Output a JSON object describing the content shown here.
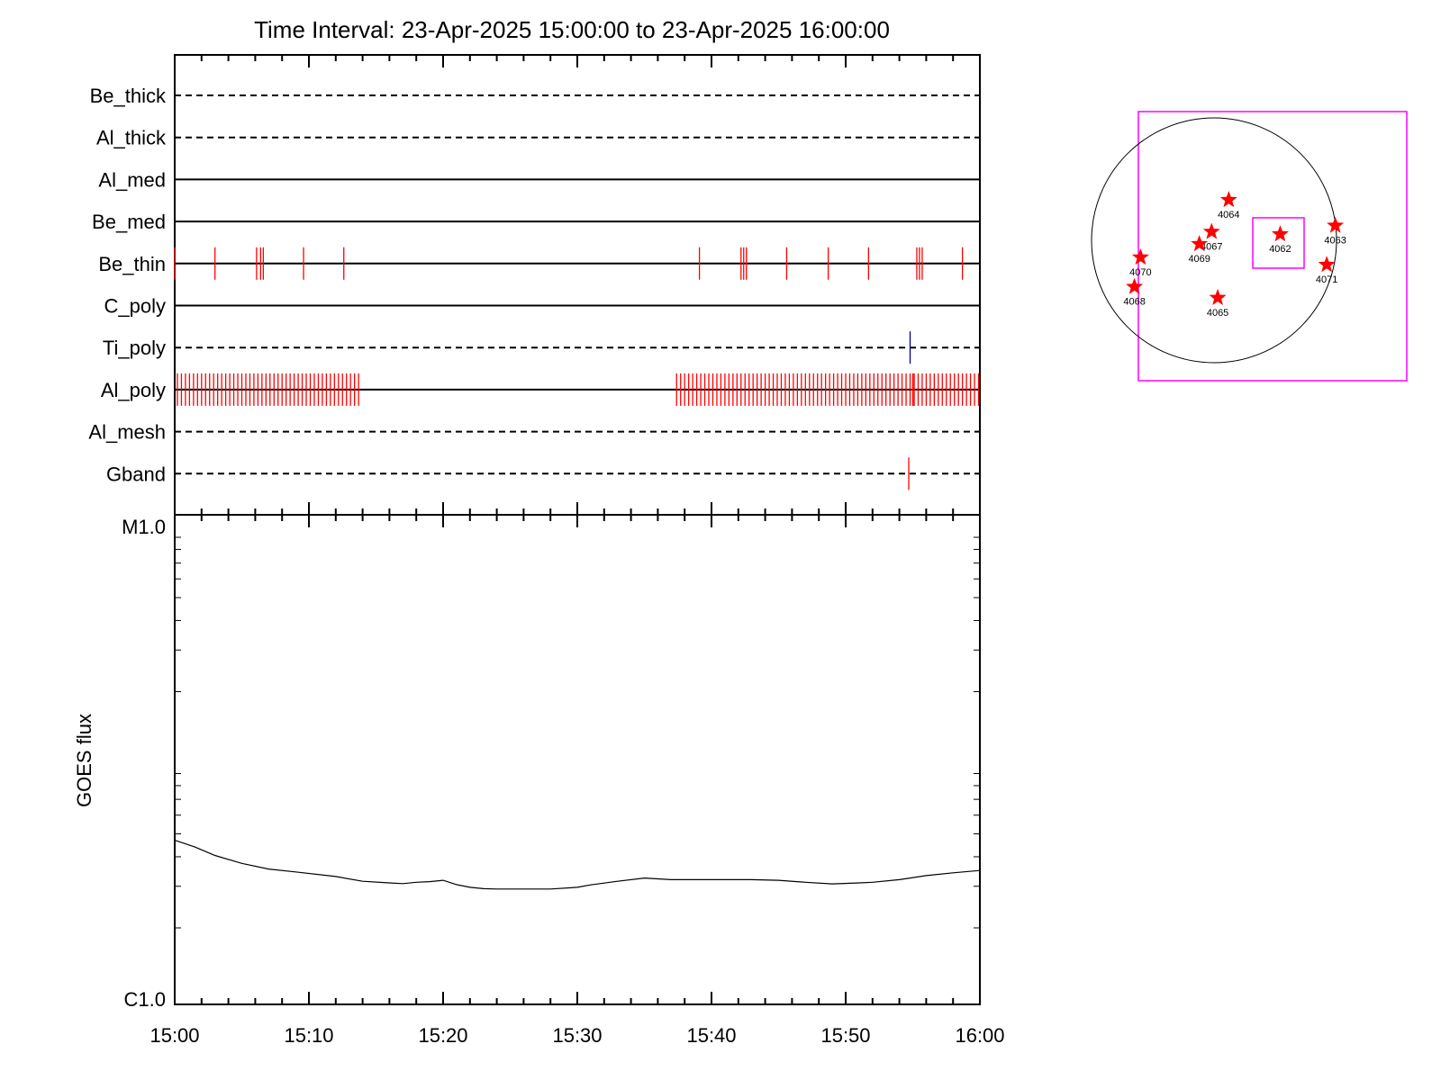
{
  "chart_data": [
    {
      "type": "event-timeline",
      "title": "Time Interval: 23-Apr-2025 15:00:00 to 23-Apr-2025 16:00:00",
      "x_range_minutes": [
        0,
        60
      ],
      "channels": [
        {
          "name": "Be_thick",
          "style": "dashed",
          "events": [],
          "color": "#ff0000"
        },
        {
          "name": "Al_thick",
          "style": "dashed",
          "events": [],
          "color": "#ff0000"
        },
        {
          "name": "Al_med",
          "style": "solid",
          "events": [],
          "color": "#ff0000"
        },
        {
          "name": "Be_med",
          "style": "solid",
          "events": [],
          "color": "#ff0000"
        },
        {
          "name": "Be_thin",
          "style": "solid",
          "color": "#ff0000",
          "events": [
            0.0,
            3.0,
            6.1,
            6.4,
            6.6,
            9.6,
            12.6,
            39.1,
            42.2,
            42.4,
            42.6,
            45.6,
            48.7,
            51.7,
            55.3,
            55.5,
            55.7,
            58.7
          ]
        },
        {
          "name": "C_poly",
          "style": "solid",
          "events": [],
          "color": "#ff0000"
        },
        {
          "name": "Ti_poly",
          "style": "dashed",
          "color": "#00008b",
          "events": [
            54.8
          ]
        },
        {
          "name": "Al_poly",
          "style": "solid",
          "color": "#ff0000",
          "event_ranges": [
            {
              "start": 0.2,
              "end": 13.8,
              "step": 0.3
            },
            {
              "start": 37.4,
              "end": 59.9,
              "step": 0.3
            }
          ],
          "dense_events": [
            55.0,
            55.1
          ]
        },
        {
          "name": "Al_mesh",
          "style": "dashed",
          "events": [],
          "color": "#ff0000"
        },
        {
          "name": "Gband",
          "style": "dashed",
          "color": "#ff0000",
          "events": [
            54.7
          ]
        }
      ]
    },
    {
      "type": "line",
      "ylabel": "GOES flux",
      "y_scale": "log",
      "yticks": [
        "M1.0",
        "C1.0"
      ],
      "ylim": [
        "C1.0",
        "M1.0"
      ],
      "xticks": [
        "15:00",
        "15:10",
        "15:20",
        "15:30",
        "15:40",
        "15:50",
        "16:00"
      ],
      "xlim_minutes": [
        0,
        60
      ],
      "series": [
        {
          "x": [
            0,
            1.5,
            3,
            5,
            7,
            9,
            12,
            14,
            16,
            17,
            18,
            19,
            20,
            21,
            22,
            23,
            24,
            26,
            28,
            30,
            31,
            33,
            35,
            37,
            39,
            41,
            43,
            45,
            47,
            49,
            51,
            52,
            54,
            56,
            58,
            60
          ],
          "y": [
            4.7,
            4.4,
            4.05,
            3.75,
            3.55,
            3.45,
            3.3,
            3.15,
            3.1,
            3.08,
            3.12,
            3.14,
            3.18,
            3.05,
            2.97,
            2.93,
            2.92,
            2.92,
            2.92,
            2.97,
            3.04,
            3.15,
            3.25,
            3.2,
            3.2,
            3.2,
            3.2,
            3.18,
            3.12,
            3.07,
            3.1,
            3.12,
            3.2,
            3.33,
            3.42,
            3.5
          ]
        }
      ]
    },
    {
      "type": "scatter",
      "points": [
        {
          "label": "4064",
          "x": 0.12,
          "y": 0.33
        },
        {
          "label": "4067",
          "x": -0.02,
          "y": 0.07
        },
        {
          "label": "4069",
          "x": -0.12,
          "y": -0.03
        },
        {
          "label": "4062",
          "x": 0.54,
          "y": 0.05
        },
        {
          "label": "4063",
          "x": 0.99,
          "y": 0.12
        },
        {
          "label": "4071",
          "x": 0.92,
          "y": -0.2
        },
        {
          "label": "4070",
          "x": -0.6,
          "y": -0.14
        },
        {
          "label": "4068",
          "x": -0.65,
          "y": -0.38
        },
        {
          "label": "4065",
          "x": 0.03,
          "y": -0.47
        }
      ]
    }
  ]
}
